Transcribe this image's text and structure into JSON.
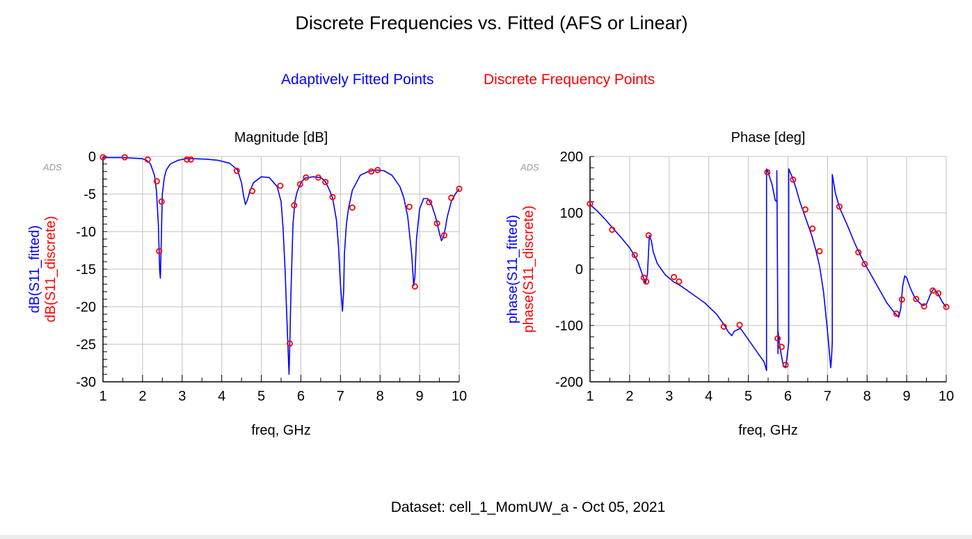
{
  "title": "Discrete Frequencies vs. Fitted (AFS or Linear)",
  "legend": {
    "fitted": "Adaptively Fitted Points",
    "discrete": "Discrete Frequency Points"
  },
  "dataset": "Dataset: cell_1_MomUW_a - Oct 05, 2021",
  "colors": {
    "fitted": "#0000ff",
    "discrete": "#ff0000",
    "grid": "#c0c0c0"
  },
  "chart_data": [
    {
      "type": "line",
      "title": "Magnitude [dB]",
      "xlabel": "freq, GHz",
      "ylabel_fitted": "dB(S11_fitted)",
      "ylabel_discrete": "dB(S11_discrete)",
      "watermark": "ADS",
      "xlim": [
        1,
        10
      ],
      "ylim": [
        -30,
        0
      ],
      "xticks": [
        "1",
        "2",
        "3",
        "4",
        "5",
        "6",
        "7",
        "8",
        "9",
        "10"
      ],
      "yticks": [
        "0",
        "-5",
        "-10",
        "-15",
        "-20",
        "-25",
        "-30"
      ],
      "grid": true,
      "series": [
        {
          "name": "dB(S11_fitted)",
          "x": [
            1.0,
            1.5,
            2.0,
            2.1,
            2.2,
            2.3,
            2.35,
            2.4,
            2.43,
            2.45,
            2.47,
            2.5,
            2.55,
            2.6,
            2.7,
            2.9,
            3.1,
            3.3,
            3.6,
            3.9,
            4.2,
            4.4,
            4.5,
            4.55,
            4.6,
            4.65,
            4.7,
            4.8,
            5.0,
            5.2,
            5.4,
            5.5,
            5.55,
            5.6,
            5.65,
            5.7,
            5.72,
            5.75,
            5.8,
            5.85,
            5.9,
            6.0,
            6.1,
            6.3,
            6.5,
            6.6,
            6.7,
            6.8,
            6.9,
            6.95,
            7.0,
            7.05,
            7.08,
            7.1,
            7.15,
            7.2,
            7.3,
            7.5,
            7.7,
            7.9,
            8.1,
            8.3,
            8.5,
            8.6,
            8.7,
            8.8,
            8.85,
            8.88,
            8.92,
            9.0,
            9.1,
            9.2,
            9.3,
            9.4,
            9.5,
            9.55,
            9.6,
            9.65,
            9.7,
            9.8,
            9.9,
            10.0
          ],
          "y": [
            -0.15,
            -0.15,
            -0.3,
            -0.5,
            -1.0,
            -2.5,
            -4.5,
            -9,
            -15,
            -16.2,
            -12,
            -5,
            -2.8,
            -1.8,
            -1.0,
            -0.5,
            -0.3,
            -0.3,
            -0.35,
            -0.5,
            -0.9,
            -1.8,
            -3.5,
            -5.2,
            -6.4,
            -5.8,
            -4.8,
            -3.5,
            -2.7,
            -2.8,
            -4.0,
            -6.0,
            -9.5,
            -15,
            -22,
            -29,
            -25,
            -18,
            -9,
            -6.0,
            -4.8,
            -3.5,
            -2.9,
            -2.7,
            -2.8,
            -3.2,
            -4.2,
            -5.5,
            -8.5,
            -12,
            -17,
            -20.6,
            -18,
            -13,
            -9,
            -7,
            -4.5,
            -2.5,
            -2.0,
            -1.8,
            -1.9,
            -2.5,
            -4.0,
            -5.5,
            -8.0,
            -13,
            -17.2,
            -16,
            -11,
            -7.0,
            -5.6,
            -5.6,
            -6.4,
            -8.0,
            -10.2,
            -11.2,
            -10.8,
            -9.5,
            -8.0,
            -6.0,
            -5.0,
            -4.3
          ]
        },
        {
          "name": "dB(S11_discrete)",
          "x": [
            1.0,
            1.55,
            2.13,
            2.36,
            2.42,
            2.48,
            3.12,
            3.22,
            4.38,
            4.77,
            5.48,
            5.72,
            5.83,
            5.98,
            6.13,
            6.44,
            6.62,
            6.8,
            7.3,
            7.78,
            7.94,
            8.74,
            8.88,
            9.24,
            9.44,
            9.62,
            9.8,
            10.0
          ],
          "y": [
            -0.1,
            -0.1,
            -0.4,
            -3.3,
            -12.6,
            -6.0,
            -0.4,
            -0.4,
            -1.9,
            -4.6,
            -3.9,
            -24.9,
            -6.5,
            -3.7,
            -2.8,
            -2.8,
            -3.4,
            -5.4,
            -6.8,
            -2.0,
            -1.8,
            -6.7,
            -17.3,
            -6.1,
            -8.9,
            -10.5,
            -5.5,
            -4.3
          ]
        }
      ]
    },
    {
      "type": "line",
      "title": "Phase [deg]",
      "xlabel": "freq, GHz",
      "ylabel_fitted": "phase(S11_fitted)",
      "ylabel_discrete": "phase(S11_discrete)",
      "watermark": "ADS",
      "xlim": [
        1,
        10
      ],
      "ylim": [
        -200,
        200
      ],
      "xticks": [
        "1",
        "2",
        "3",
        "4",
        "5",
        "6",
        "7",
        "8",
        "9",
        "10"
      ],
      "yticks": [
        "200",
        "100",
        "0",
        "-100",
        "-200"
      ],
      "grid": true,
      "series": [
        {
          "name": "phase(S11_fitted)",
          "x": [
            1.0,
            1.2,
            1.4,
            1.6,
            1.8,
            2.0,
            2.2,
            2.3,
            2.35,
            2.4,
            2.45,
            2.5,
            2.55,
            2.6,
            2.7,
            2.9,
            3.1,
            3.3,
            3.6,
            3.9,
            4.2,
            4.4,
            4.5,
            4.58,
            4.65,
            4.8,
            5.0,
            5.2,
            5.4,
            5.46,
            5.46,
            5.5,
            5.6,
            5.68,
            5.72,
            5.72,
            5.75,
            5.75,
            5.8,
            5.88,
            5.94,
            5.98,
            6.02,
            6.02,
            6.1,
            6.2,
            6.3,
            6.4,
            6.5,
            6.6,
            6.7,
            6.8,
            6.9,
            7.0,
            7.05,
            7.08,
            7.1,
            7.12,
            7.12,
            7.2,
            7.3,
            7.5,
            7.7,
            7.9,
            8.1,
            8.3,
            8.5,
            8.7,
            8.8,
            8.85,
            8.9,
            8.95,
            9.0,
            9.1,
            9.2,
            9.3,
            9.4,
            9.5,
            9.6,
            9.65,
            9.7,
            9.8,
            9.9,
            10.0
          ],
          "y": [
            115,
            102,
            87,
            71,
            55,
            38,
            15,
            -5,
            -15,
            -25,
            -10,
            60,
            50,
            30,
            10,
            -10,
            -22,
            -30,
            -45,
            -60,
            -80,
            -100,
            -112,
            -118,
            -110,
            -105,
            -125,
            -145,
            -165,
            -180,
            178,
            172,
            150,
            122,
            120,
            175,
            -150,
            -110,
            -140,
            -170,
            -175,
            -155,
            -130,
            178,
            165,
            145,
            120,
            100,
            80,
            60,
            35,
            5,
            -40,
            -110,
            -150,
            -175,
            -160,
            -130,
            168,
            135,
            110,
            78,
            44,
            15,
            -10,
            -35,
            -60,
            -78,
            -85,
            -70,
            -30,
            -12,
            -15,
            -35,
            -50,
            -58,
            -65,
            -62,
            -45,
            -38,
            -35,
            -45,
            -58,
            -68
          ]
        },
        {
          "name": "phase(S11_discrete)",
          "x": [
            1.0,
            1.56,
            2.13,
            2.36,
            2.42,
            2.48,
            3.12,
            3.25,
            4.38,
            4.78,
            5.48,
            5.74,
            5.84,
            5.94,
            6.13,
            6.44,
            6.62,
            6.8,
            7.3,
            7.78,
            7.94,
            8.74,
            8.88,
            9.24,
            9.44,
            9.66,
            9.8,
            10.0
          ],
          "y": [
            116,
            70,
            25,
            -15,
            -22,
            60,
            -14,
            -22,
            -102,
            -99,
            172,
            -123,
            -138,
            -170,
            159,
            106,
            72,
            32,
            111,
            30,
            9,
            -79,
            -54,
            -53,
            -66,
            -38,
            -43,
            -67
          ]
        }
      ]
    }
  ]
}
